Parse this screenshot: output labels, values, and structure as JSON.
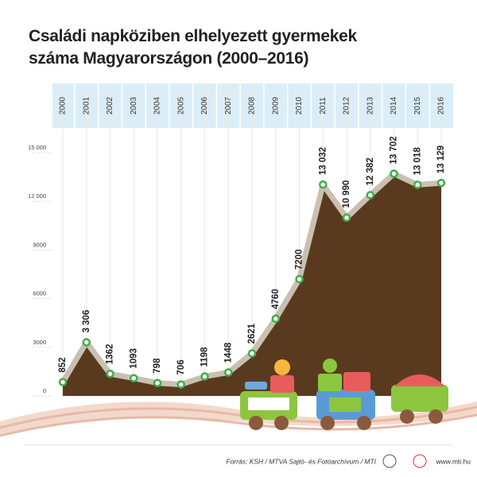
{
  "chart_data": {
    "type": "area",
    "title": "Családi napköziben elhelyezett gyermekek száma Magyarországon (2000–2016)",
    "categories": [
      "2000",
      "2001",
      "2002",
      "2003",
      "2004",
      "2005",
      "2006",
      "2007",
      "2008",
      "2009",
      "2010",
      "2011",
      "2012",
      "2013",
      "2014",
      "2015",
      "2016"
    ],
    "values": [
      852,
      3306,
      1362,
      1093,
      798,
      706,
      1198,
      1448,
      2621,
      4760,
      7200,
      13032,
      10990,
      12382,
      13702,
      13018,
      13129
    ],
    "value_labels": [
      "852",
      "3 306",
      "1362",
      "1093",
      "798",
      "706",
      "1198",
      "1448",
      "2621",
      "4760",
      "7200",
      "13 032",
      "10 990",
      "12 382",
      "13 702",
      "13 018",
      "13 129"
    ],
    "color": "#5a3a1e",
    "line_color": "#c9c0b2",
    "marker_color": "#3fae49",
    "ylim": [
      0,
      15000
    ],
    "yticks": [
      0,
      3000,
      6000,
      9000,
      {
        "value": 12000,
        "label": "12 000"
      },
      {
        "value": 15000,
        "label": "15 000"
      }
    ],
    "grid": true,
    "source": "Forrás: KSH / MTVA Sajtó- és Fotóarchívum / MTI",
    "website": "www.mti.hu"
  }
}
